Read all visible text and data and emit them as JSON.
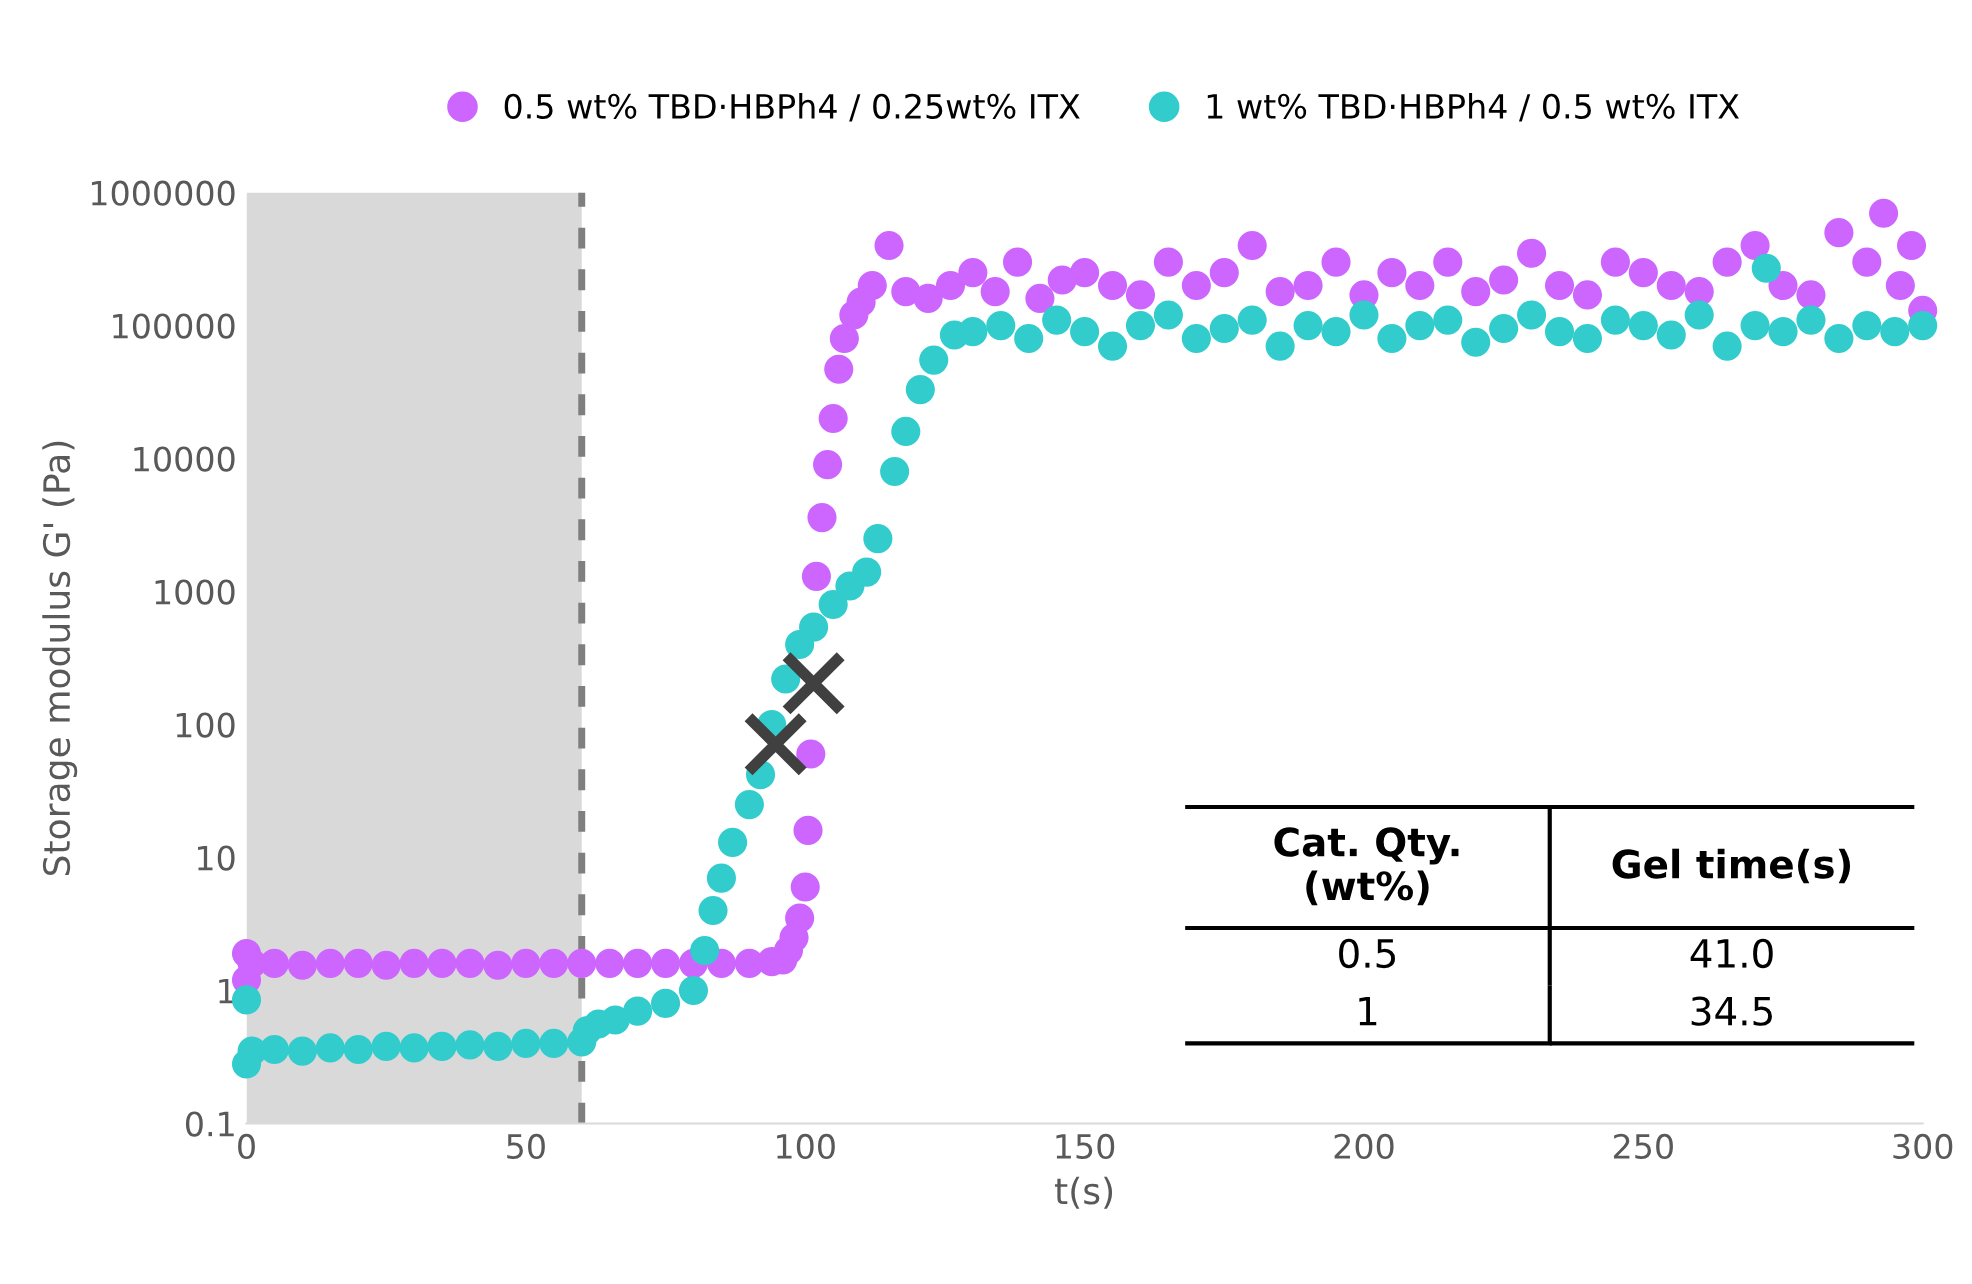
{
  "chart_data": {
    "type": "scatter",
    "xlabel": "t(s)",
    "ylabel": "Storage modulus G' (Pa)",
    "log": "y",
    "xlim": [
      0,
      300
    ],
    "xticks": [
      0,
      50,
      100,
      150,
      200,
      250,
      300
    ],
    "ylim": [
      0.1,
      1000000
    ],
    "yticks": [
      0.1,
      1,
      10,
      100,
      1000,
      10000,
      100000,
      1000000
    ],
    "grid": false,
    "legend": "top",
    "marker": "circle",
    "bands": [
      {
        "axis": "x",
        "from": 0,
        "to": 60,
        "color": "#d9d9d9"
      }
    ],
    "ref_lines": [
      {
        "axis": "x",
        "value": 60,
        "color": "#7f7f7f",
        "line_style": "dashed"
      }
    ],
    "series": [
      {
        "name": "0.5 wt% TBD·HBPh4 / 0.25wt% ITX",
        "color": "#cc66ff",
        "x": [
          0,
          0,
          1,
          5,
          10,
          15,
          20,
          25,
          30,
          35,
          40,
          45,
          50,
          55,
          60,
          65,
          70,
          75,
          80,
          85,
          90,
          94,
          96,
          97,
          98,
          99,
          100,
          100.5,
          101,
          102,
          103,
          104,
          105,
          106,
          107,
          108.7,
          110,
          112,
          115,
          118,
          122,
          126,
          130,
          134,
          138,
          142,
          146,
          150,
          155,
          160,
          165,
          170,
          175,
          180,
          185,
          190,
          195,
          200,
          205,
          210,
          215,
          220,
          225,
          230,
          235,
          240,
          245,
          250,
          255,
          260,
          265,
          270,
          275,
          280,
          285,
          290,
          293,
          296,
          298,
          300
        ],
        "values": [
          1.2,
          1.9,
          1.6,
          1.6,
          1.55,
          1.6,
          1.6,
          1.55,
          1.6,
          1.6,
          1.6,
          1.55,
          1.6,
          1.6,
          1.6,
          1.6,
          1.6,
          1.6,
          1.6,
          1.6,
          1.6,
          1.65,
          1.7,
          2.0,
          2.5,
          3.5,
          6,
          16,
          60,
          1300,
          3600,
          9000,
          20000,
          47000,
          80000,
          120000,
          150000,
          200000,
          400000,
          180000,
          160000,
          200000,
          250000,
          180000,
          300000,
          160000,
          220000,
          250000,
          200000,
          170000,
          300000,
          200000,
          250000,
          400000,
          180000,
          200000,
          300000,
          170000,
          250000,
          200000,
          300000,
          180000,
          220000,
          350000,
          200000,
          170000,
          300000,
          250000,
          200000,
          180000,
          300000,
          400000,
          200000,
          170000,
          500000,
          300000,
          700000,
          200000,
          400000,
          130000
        ]
      },
      {
        "name": "1 wt% TBD·HBPh4 / 0.5 wt% ITX",
        "color": "#33cccc",
        "x": [
          0,
          0,
          1,
          5,
          10,
          15,
          20,
          25,
          30,
          35,
          40,
          45,
          50,
          55,
          60,
          61,
          63,
          66,
          70,
          75,
          80,
          82,
          83.5,
          85,
          87,
          90,
          92,
          94,
          96.5,
          99,
          101.5,
          105,
          108,
          111,
          113,
          116,
          118,
          120.6,
          123,
          126.7,
          130,
          135,
          140,
          145,
          150,
          155,
          160,
          165,
          170,
          175,
          180,
          185,
          190,
          195,
          200,
          205,
          210,
          215,
          220,
          225,
          230,
          235,
          240,
          245,
          250,
          255,
          260,
          265,
          270,
          272,
          275,
          280,
          285,
          290,
          295,
          300
        ],
        "values": [
          0.85,
          0.28,
          0.35,
          0.36,
          0.35,
          0.37,
          0.36,
          0.38,
          0.37,
          0.38,
          0.39,
          0.38,
          0.4,
          0.4,
          0.41,
          0.5,
          0.56,
          0.6,
          0.7,
          0.8,
          1.0,
          2,
          4,
          7,
          13,
          25,
          42,
          100,
          220,
          400,
          540,
          800,
          1100,
          1400,
          2500,
          8000,
          16000,
          33000,
          55000,
          85000,
          90000,
          100000,
          80000,
          110000,
          90000,
          70000,
          100000,
          120000,
          80000,
          95000,
          110000,
          70000,
          100000,
          90000,
          120000,
          80000,
          100000,
          110000,
          75000,
          95000,
          120000,
          90000,
          80000,
          110000,
          100000,
          85000,
          120000,
          70000,
          100000,
          270000,
          90000,
          110000,
          80000,
          100000,
          90000,
          100000
        ]
      },
      {
        "type": "scatter",
        "color": "#404040",
        "marker": "cross",
        "x": [
          94.7,
          101.5
        ],
        "values": [
          71,
          204
        ]
      }
    ],
    "annotations": [
      "Cat. Qty.\n(wt%)",
      "Gel time(s)",
      "0.5",
      "41.0",
      "1",
      "34.5"
    ]
  }
}
